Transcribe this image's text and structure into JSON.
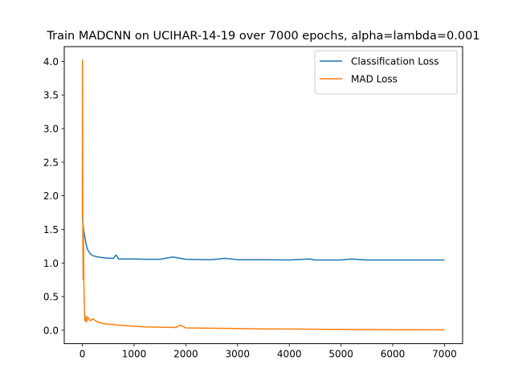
{
  "chart_data": {
    "type": "line",
    "title": "Train MADCNN on UCIHAR-14-19 over 7000 epochs, alpha=lambda=0.001",
    "xlabel": "",
    "ylabel": "",
    "xlim": [
      -350,
      7350
    ],
    "ylim": [
      -0.2,
      4.22
    ],
    "xticks": [
      0,
      1000,
      2000,
      3000,
      4000,
      5000,
      6000,
      7000
    ],
    "xtick_labels": [
      "0",
      "1000",
      "2000",
      "3000",
      "4000",
      "5000",
      "6000",
      "7000"
    ],
    "yticks": [
      0.0,
      0.5,
      1.0,
      1.5,
      2.0,
      2.5,
      3.0,
      3.5,
      4.0
    ],
    "ytick_labels": [
      "0.0",
      "0.5",
      "1.0",
      "1.5",
      "2.0",
      "2.5",
      "3.0",
      "3.5",
      "4.0"
    ],
    "grid": false,
    "legend_position": "top-right",
    "series": [
      {
        "name": "Classification Loss",
        "color": "#1f77b4",
        "x": [
          0,
          10,
          25,
          50,
          75,
          100,
          150,
          200,
          300,
          400,
          500,
          600,
          650,
          700,
          800,
          1000,
          1200,
          1500,
          1750,
          2000,
          2500,
          2750,
          3000,
          3500,
          4000,
          4400,
          4500,
          5000,
          5200,
          5500,
          6000,
          6500,
          7000
        ],
        "y": [
          1.69,
          1.6,
          1.5,
          1.38,
          1.27,
          1.2,
          1.14,
          1.11,
          1.09,
          1.08,
          1.07,
          1.07,
          1.12,
          1.06,
          1.06,
          1.06,
          1.055,
          1.055,
          1.09,
          1.055,
          1.05,
          1.07,
          1.05,
          1.05,
          1.045,
          1.06,
          1.045,
          1.045,
          1.06,
          1.045,
          1.045,
          1.045,
          1.045
        ]
      },
      {
        "name": "MAD Loss",
        "color": "#ff7f0e",
        "x": [
          0,
          3,
          6,
          10,
          15,
          20,
          30,
          40,
          50,
          60,
          80,
          100,
          150,
          200,
          300,
          400,
          500,
          600,
          700,
          800,
          1000,
          1200,
          1500,
          1800,
          1900,
          2000,
          2500,
          3000,
          3500,
          4000,
          4500,
          5000,
          5500,
          6000,
          6500,
          7000
        ],
        "y": [
          1.7,
          4.02,
          2.9,
          1.2,
          0.75,
          1.55,
          0.68,
          0.3,
          0.14,
          0.22,
          0.12,
          0.2,
          0.14,
          0.17,
          0.12,
          0.1,
          0.09,
          0.085,
          0.075,
          0.07,
          0.06,
          0.05,
          0.045,
          0.04,
          0.075,
          0.035,
          0.03,
          0.025,
          0.02,
          0.018,
          0.015,
          0.012,
          0.01,
          0.008,
          0.007,
          0.006
        ]
      }
    ]
  }
}
